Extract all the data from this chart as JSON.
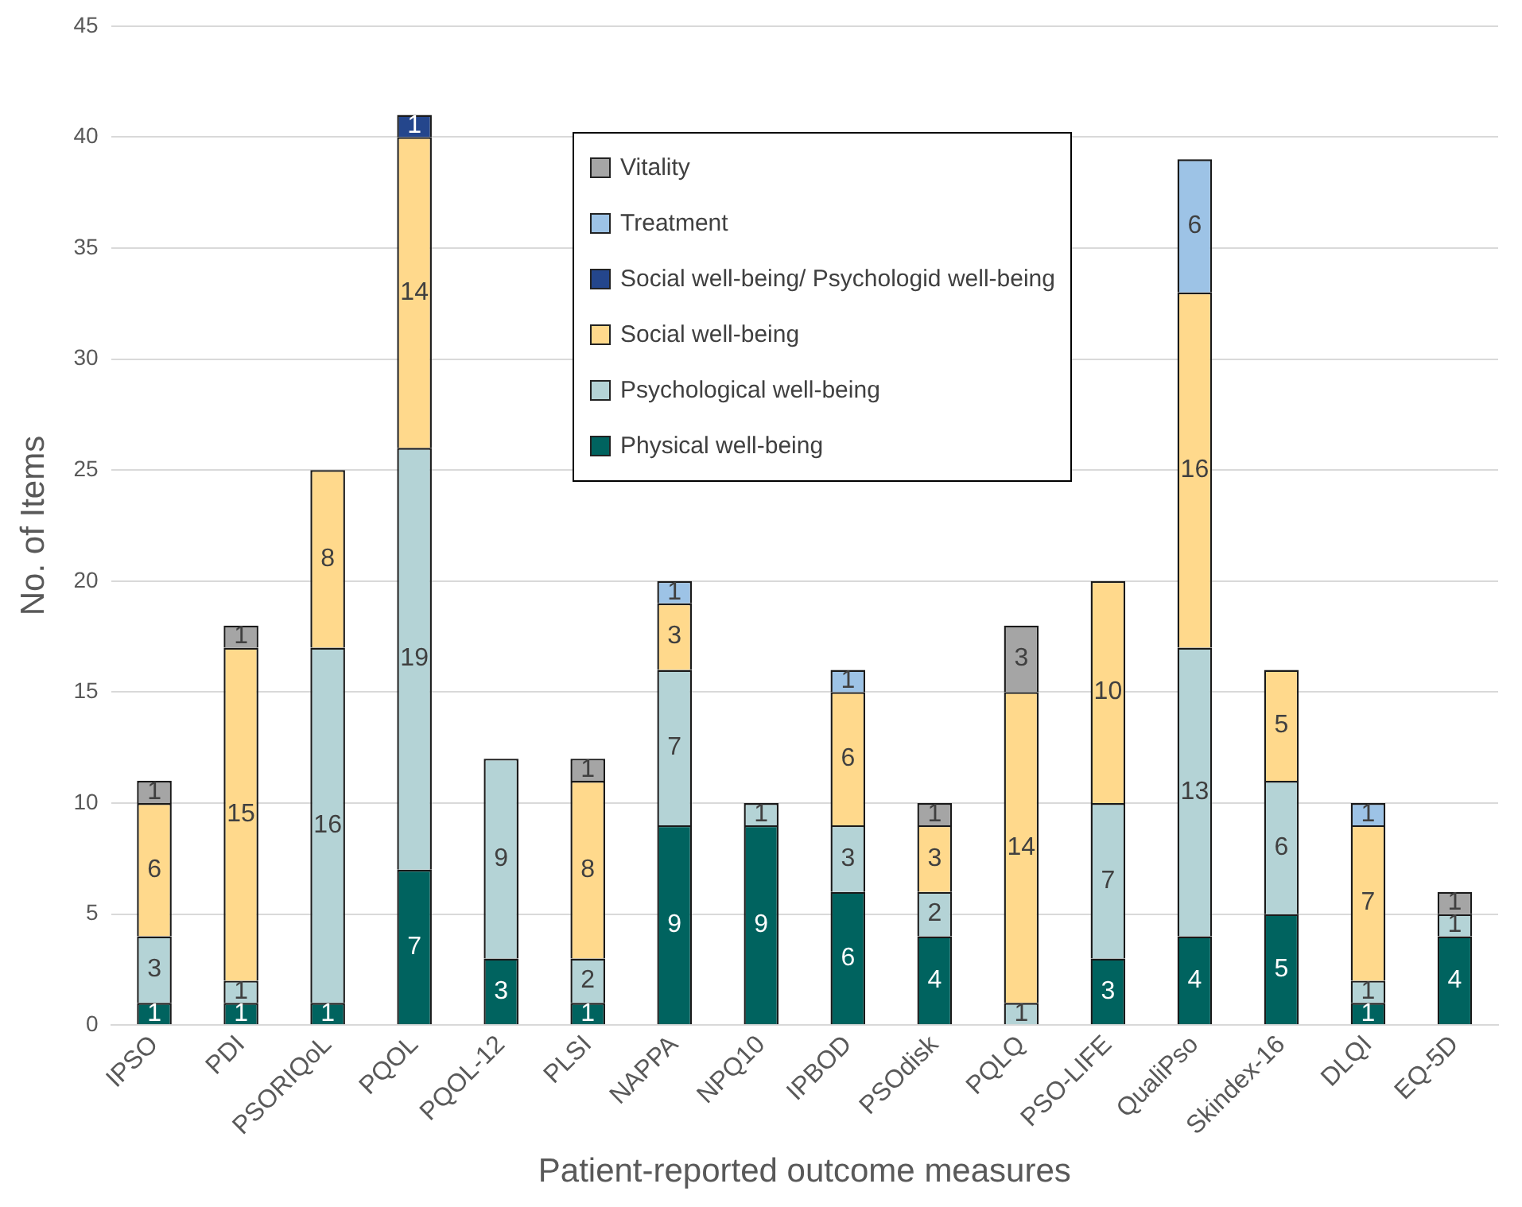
{
  "chart_data": {
    "type": "bar",
    "stacked": true,
    "xlabel": "Patient-reported outcome measures",
    "ylabel": "No. of Items",
    "categories": [
      "IPSO",
      "PDI",
      "PSORIQoL",
      "PQOL",
      "PQOL-12",
      "PLSI",
      "NAPPA",
      "NPQ10",
      "IPBOD",
      "PSOdisk",
      "PQLQ",
      "PSO-LIFE",
      "QualiPso",
      "Skindex-16",
      "DLQI",
      "EQ-5D"
    ],
    "series": [
      {
        "name": "Physical well-being",
        "color": "#00635f",
        "values": [
          1,
          1,
          1,
          7,
          3,
          1,
          9,
          9,
          6,
          4,
          null,
          3,
          4,
          5,
          1,
          4
        ]
      },
      {
        "name": "Psychological well-being",
        "color": "#b4d3d6",
        "values": [
          3,
          1,
          16,
          19,
          9,
          2,
          7,
          1,
          3,
          2,
          1,
          7,
          13,
          6,
          1,
          1
        ]
      },
      {
        "name": "Social well-being",
        "color": "#ffd98c",
        "values": [
          6,
          15,
          8,
          14,
          null,
          8,
          3,
          null,
          6,
          3,
          14,
          10,
          16,
          5,
          7,
          null
        ]
      },
      {
        "name": "Social well-being/ Psychologid well-being",
        "color": "#24468c",
        "values": [
          null,
          null,
          null,
          1,
          null,
          null,
          null,
          null,
          null,
          null,
          null,
          null,
          null,
          null,
          null,
          null
        ]
      },
      {
        "name": "Treatment",
        "color": "#9dc3e6",
        "values": [
          null,
          null,
          null,
          null,
          null,
          null,
          1,
          null,
          1,
          null,
          null,
          null,
          6,
          null,
          1,
          null
        ]
      },
      {
        "name": "Vitality",
        "color": "#a5a5a5",
        "values": [
          1,
          1,
          null,
          null,
          null,
          1,
          null,
          null,
          null,
          1,
          3,
          null,
          null,
          null,
          null,
          1
        ]
      }
    ],
    "ylim": [
      0,
      45
    ],
    "yticks": [
      0,
      5,
      10,
      15,
      20,
      25,
      30,
      35,
      40,
      45
    ],
    "grid": "y",
    "legend": "top",
    "data_labels": true
  }
}
